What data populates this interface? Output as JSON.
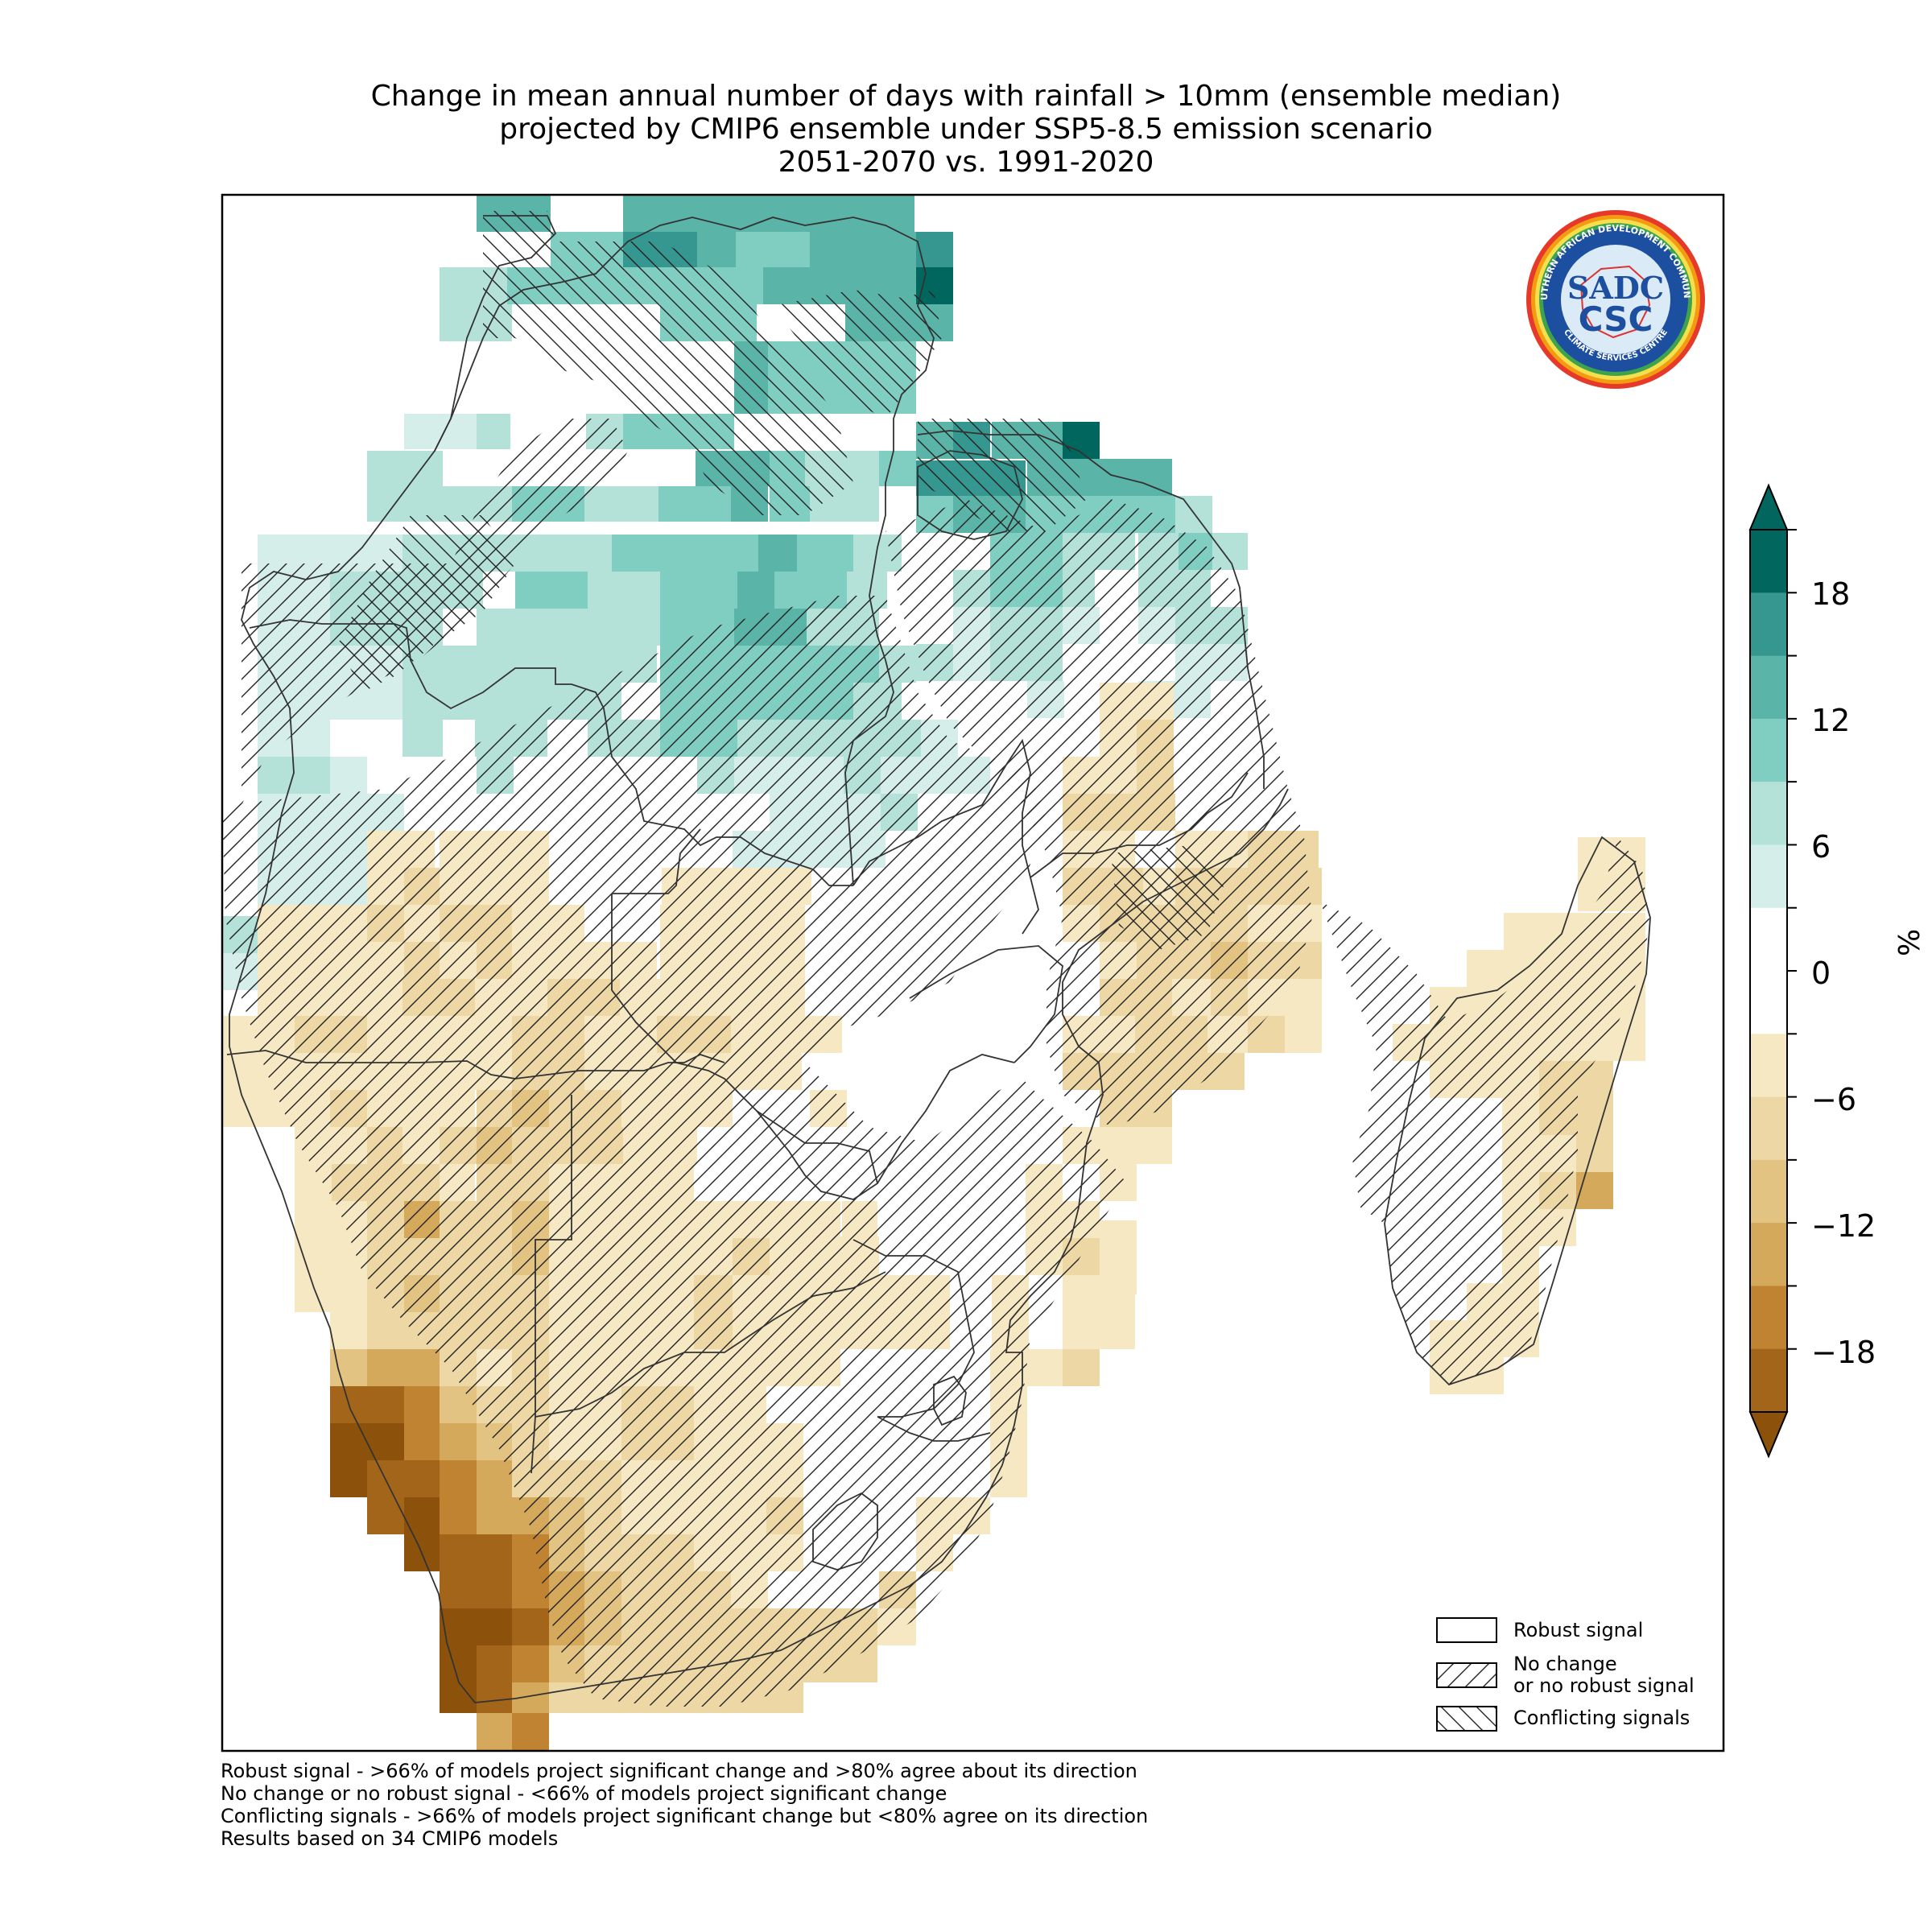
{
  "title": {
    "line1": "Change in mean annual number of days with rainfall > 10mm (ensemble median)",
    "line2": "projected by CMIP6 ensemble under SSP5-8.5 emission scenario",
    "line3": "2051-2070 vs. 1991-2020"
  },
  "logo": {
    "top_text": "SOUTHERN AFRICAN DEVELOPMENT COMMUNITY",
    "bottom_text": "CLIMATE SERVICES CENTRE",
    "mark_top": "SADC",
    "mark_bottom": "CSC"
  },
  "colorbar": {
    "unit": "%",
    "ticks": [
      "18",
      "12",
      "6",
      "0",
      "−6",
      "−12",
      "−18"
    ],
    "colors": {
      "p21": "#01665e",
      "p18": "#35978f",
      "p15": "#5ab4a7",
      "p12": "#80cdc1",
      "p9": "#b4e1d8",
      "p6": "#d5eeea",
      "zero": "#ffffff",
      "n3": "#f6e8c3",
      "n6": "#ecd7a5",
      "n9": "#e3c381",
      "n12": "#d4a95c",
      "n15": "#c08331",
      "n18": "#a2651a",
      "n21": "#8c510a"
    }
  },
  "legend": {
    "robust": "Robust signal",
    "no_change_1": "No change",
    "no_change_2": "or no robust signal",
    "conflicting": "Conflicting signals"
  },
  "footnotes": [
    "Robust signal - >66% of models project significant change and >80% agree about its direction",
    "No change or no robust signal - <66% of models project significant change",
    "Conflicting signals - >66% of models project significant change but <80% agree on its direction",
    "Results based on 34 CMIP6 models"
  ]
}
